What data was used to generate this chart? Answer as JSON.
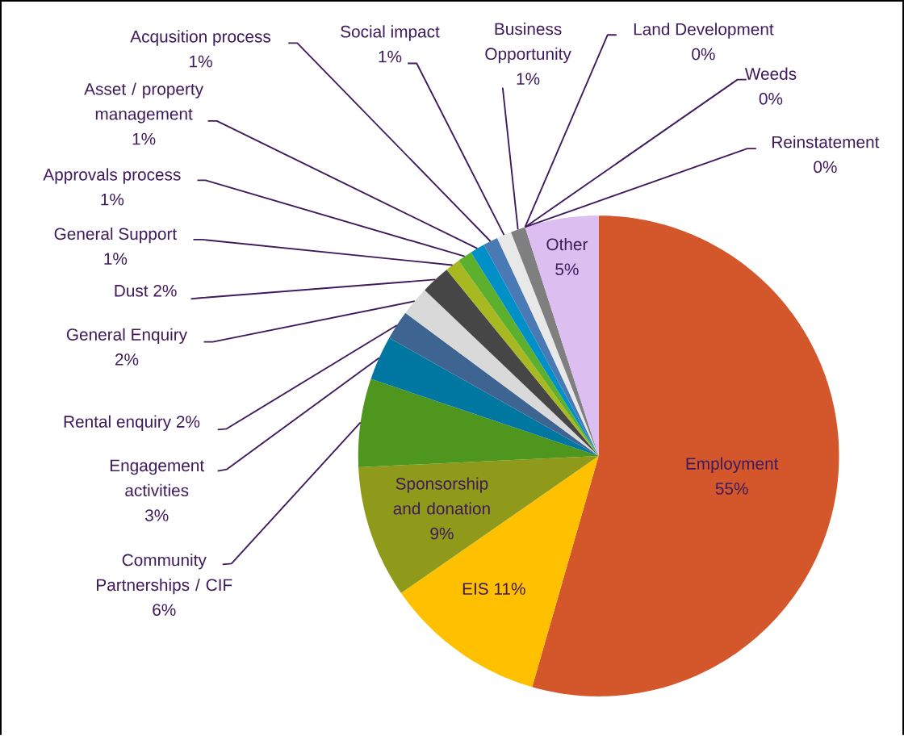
{
  "chart_data": {
    "type": "pie",
    "categories": [
      "Employment",
      "EIS",
      "Sponsorship and donation",
      "Community Partnerships / CIF",
      "Engagement activities",
      "Rental enquiry",
      "General Enquiry",
      "Dust",
      "General Support",
      "Approvals process",
      "Asset / property management",
      "Acqusition process",
      "Social impact",
      "Business Opportunity",
      "Land Development",
      "Weeds",
      "Reinstatement",
      "Other"
    ],
    "values": [
      55,
      11,
      9,
      6,
      3,
      2,
      2,
      2,
      1,
      1,
      1,
      1,
      1,
      1,
      0,
      0,
      0,
      5
    ],
    "value_labels": [
      "55%",
      "11%",
      "9%",
      "6%",
      "3%",
      "2%",
      "2%",
      "2%",
      "1%",
      "1%",
      "1%",
      "1%",
      "1%",
      "1%",
      "0%",
      "0%",
      "0%",
      "5%"
    ],
    "colors": [
      "#d4562b",
      "#ffc000",
      "#8f9a1a",
      "#4e961e",
      "#0077a0",
      "#3e6592",
      "#d9d9d9",
      "#464646",
      "#a8b820",
      "#5db02e",
      "#0090c8",
      "#4a7ab5",
      "#e8e8e8",
      "#7f7f7f",
      "#c4d27a",
      "#8dc870",
      "#6aaed8",
      "#dcbef0"
    ]
  }
}
